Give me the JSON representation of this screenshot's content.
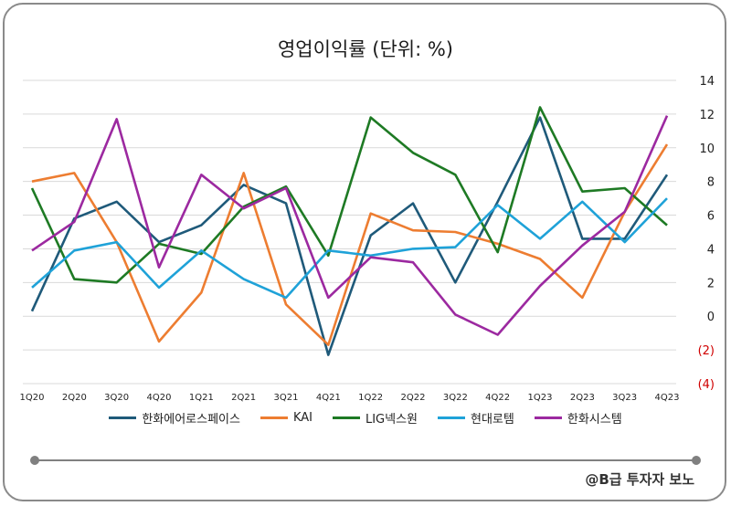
{
  "chart_data": {
    "type": "line",
    "title": "영업이익률 (단위: %)",
    "x": [
      "1Q20",
      "2Q20",
      "3Q20",
      "4Q20",
      "1Q21",
      "2Q21",
      "3Q21",
      "4Q21",
      "1Q22",
      "2Q22",
      "3Q22",
      "4Q22",
      "1Q23",
      "2Q23",
      "3Q23",
      "4Q23"
    ],
    "ylim": [
      -4,
      14
    ],
    "yticks": [
      14,
      12,
      10,
      8,
      6,
      4,
      2,
      0,
      -2,
      -4
    ],
    "ytick_labels": [
      "14",
      "12",
      "10",
      "8",
      "6",
      "4",
      "2",
      "0",
      "(2)",
      "(4)"
    ],
    "grid": true,
    "legend_position": "bottom",
    "series": [
      {
        "name": "한화에어로스페이스",
        "color": "#1f5a7a",
        "values": [
          0.3,
          5.8,
          6.8,
          4.4,
          5.4,
          7.8,
          6.7,
          -2.3,
          4.8,
          6.7,
          2.0,
          6.8,
          11.8,
          4.6,
          4.6,
          8.4
        ]
      },
      {
        "name": "KAI",
        "color": "#ed7d31",
        "values": [
          8.0,
          8.5,
          4.4,
          -1.5,
          1.4,
          8.5,
          0.7,
          -1.7,
          6.1,
          5.1,
          5.0,
          4.3,
          3.4,
          1.1,
          6.2,
          10.2
        ]
      },
      {
        "name": "LIG넥스원",
        "color": "#1e7a24",
        "values": [
          7.6,
          2.2,
          2.0,
          4.3,
          3.7,
          6.5,
          7.7,
          3.6,
          11.8,
          9.7,
          8.4,
          3.8,
          12.4,
          7.4,
          7.6,
          5.4
        ]
      },
      {
        "name": "현대로템",
        "color": "#1fa2d8",
        "values": [
          1.7,
          3.9,
          4.4,
          1.7,
          3.9,
          2.2,
          1.1,
          3.9,
          3.6,
          4.0,
          4.1,
          6.6,
          4.6,
          6.8,
          4.4,
          7.0
        ]
      },
      {
        "name": "한화시스템",
        "color": "#9c29a0",
        "values": [
          3.9,
          5.6,
          11.7,
          2.9,
          8.4,
          6.4,
          7.6,
          1.1,
          3.5,
          3.2,
          0.1,
          -1.1,
          1.8,
          4.2,
          6.2,
          11.9
        ]
      }
    ]
  },
  "credit": "@B급 투자자 보노"
}
